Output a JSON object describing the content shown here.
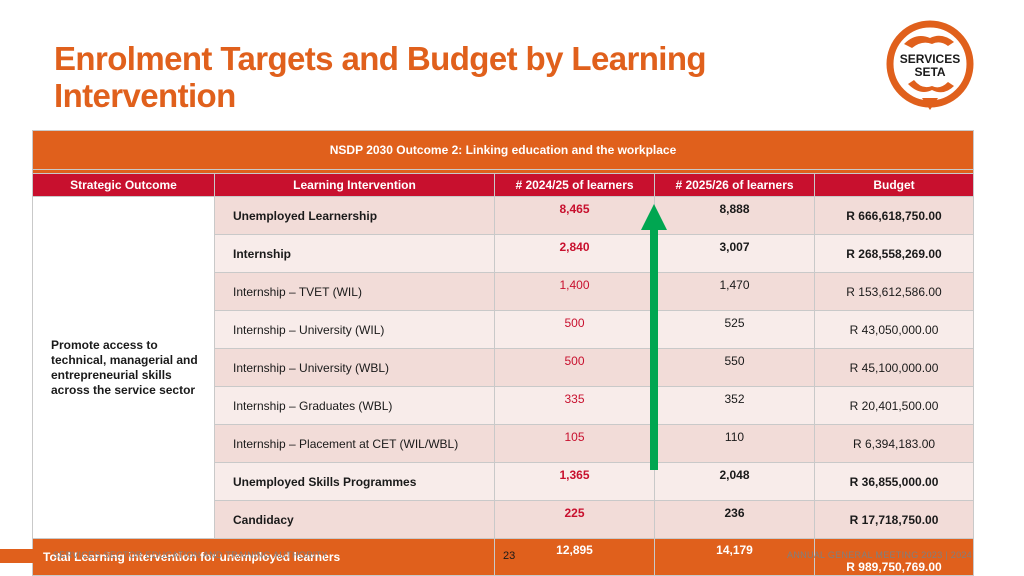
{
  "title": "Enrolment Targets and Budget by Learning Intervention",
  "logo": {
    "line1": "SERVICES",
    "line2": "SETA",
    "colors": {
      "ring": "#e0601c",
      "text": "#1a1a1a"
    }
  },
  "table": {
    "banner": "NSDP 2030 Outcome 2: Linking education and the workplace",
    "headers": [
      "Strategic Outcome",
      "Learning Intervention",
      "# 2024/25 of learners",
      "# 2025/26 of learners",
      "Budget"
    ],
    "strategic_outcome": "Promote access to technical, managerial and entrepreneurial skills across the service sector",
    "rows": [
      {
        "intervention": "Unemployed Learnership",
        "y2024": "8,465",
        "y2025": "8,888",
        "budget": "R 666,618,750.00"
      },
      {
        "intervention": "Internship",
        "y2024": "2,840",
        "y2025": "3,007",
        "budget": "R 268,558,269.00"
      },
      {
        "intervention": "Internship – TVET (WIL)",
        "y2024": "1,400",
        "y2025": "1,470",
        "budget": "R 153,612,586.00"
      },
      {
        "intervention": "Internship – University (WIL)",
        "y2024": "500",
        "y2025": "525",
        "budget": "R 43,050,000.00"
      },
      {
        "intervention": "Internship – University (WBL)",
        "y2024": "500",
        "y2025": "550",
        "budget": "R 45,100,000.00"
      },
      {
        "intervention": "Internship – Graduates (WBL)",
        "y2024": "335",
        "y2025": "352",
        "budget": "R 20,401,500.00"
      },
      {
        "intervention": "Internship – Placement at CET (WIL/WBL)",
        "y2024": "105",
        "y2025": "110",
        "budget": "R 6,394,183.00"
      },
      {
        "intervention": "Unemployed Skills Programmes",
        "y2024": "1,365",
        "y2025": "2,048",
        "budget": "R 36,855,000.00"
      },
      {
        "intervention": "Candidacy",
        "y2024": "225",
        "y2025": "236",
        "budget": "R 17,718,750.00"
      }
    ],
    "total": {
      "label": "Total Learning intervention for unemployed learners",
      "y2024": "12,895",
      "y2025": "14,179",
      "budget": "R 989,750,769.00"
    }
  },
  "arrow": {
    "color": "#00a651",
    "direction": "up-icon"
  },
  "footer": {
    "left": "SERVICES SECTOR EDUCATION AND TRAINING AUTHORITY",
    "page": "23",
    "right": "ANNUAL GENERAL MEETING 2023 | 2024"
  },
  "colors": {
    "accent": "#e0601c",
    "header_red": "#c8102e",
    "row_pink": "#f2dcd8"
  }
}
